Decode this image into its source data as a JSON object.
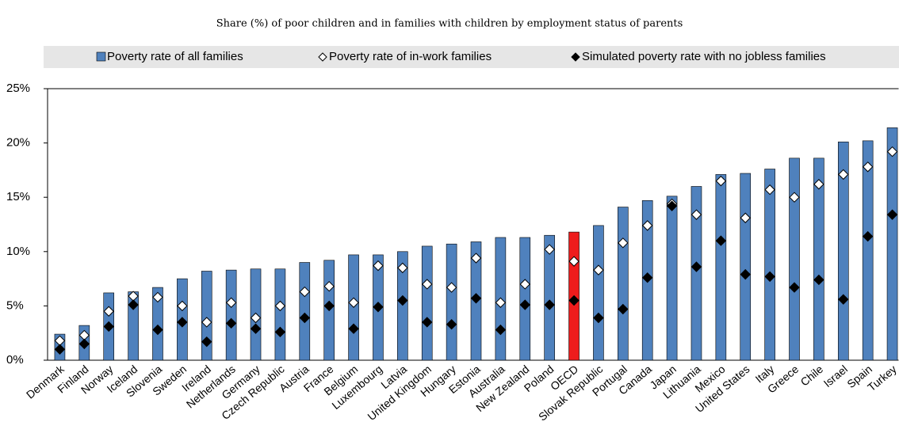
{
  "chart_data": {
    "type": "bar",
    "title": "Share (%) of poor children and in families with children by employment status of parents",
    "categories": [
      "Denmark",
      "Finland",
      "Norway",
      "Iceland",
      "Slovenia",
      "Sweden",
      "Ireland",
      "Netherlands",
      "Germany",
      "Czech Republic",
      "Austria",
      "France",
      "Belgium",
      "Luxembourg",
      "Latvia",
      "United Kingdom",
      "Hungary",
      "Estonia",
      "Australia",
      "New Zealand",
      "Poland",
      "OECD",
      "Slovak Republic",
      "Portugal",
      "Canada",
      "Japan",
      "Lithuania",
      "Mexico",
      "United States",
      "Italy",
      "Greece",
      "Chile",
      "Israel",
      "Spain",
      "Turkey"
    ],
    "series": [
      {
        "name": "Poverty rate of all families",
        "marker": "bar",
        "color": "#4f81bd",
        "colors": [
          "#4f81bd",
          "#4f81bd",
          "#4f81bd",
          "#4f81bd",
          "#4f81bd",
          "#4f81bd",
          "#4f81bd",
          "#4f81bd",
          "#4f81bd",
          "#4f81bd",
          "#4f81bd",
          "#4f81bd",
          "#4f81bd",
          "#4f81bd",
          "#4f81bd",
          "#4f81bd",
          "#4f81bd",
          "#4f81bd",
          "#4f81bd",
          "#4f81bd",
          "#4f81bd",
          "#ee1c1c",
          "#4f81bd",
          "#4f81bd",
          "#4f81bd",
          "#4f81bd",
          "#4f81bd",
          "#4f81bd",
          "#4f81bd",
          "#4f81bd",
          "#4f81bd",
          "#4f81bd",
          "#4f81bd",
          "#4f81bd",
          "#4f81bd"
        ],
        "values": [
          2.4,
          3.2,
          6.2,
          6.3,
          6.7,
          7.5,
          8.2,
          8.3,
          8.4,
          8.4,
          9.0,
          9.2,
          9.7,
          9.7,
          10.0,
          10.5,
          10.7,
          10.9,
          11.3,
          11.3,
          11.5,
          11.8,
          12.4,
          14.1,
          14.7,
          15.1,
          16.0,
          17.1,
          17.2,
          17.6,
          18.6,
          18.6,
          20.1,
          20.2,
          21.4
        ]
      },
      {
        "name": "Poverty rate of in-work families",
        "marker": "diamond",
        "color": "#ffffff",
        "values": [
          1.8,
          2.3,
          4.5,
          5.9,
          5.8,
          5.0,
          3.5,
          5.3,
          3.9,
          5.0,
          6.3,
          6.8,
          5.3,
          8.7,
          8.5,
          7.0,
          6.7,
          9.4,
          5.3,
          7.0,
          10.2,
          9.1,
          8.3,
          10.8,
          12.4,
          14.4,
          13.4,
          16.5,
          13.1,
          15.7,
          15.0,
          16.2,
          17.1,
          17.8,
          19.2
        ]
      },
      {
        "name": "Simulated poverty rate with no jobless families",
        "marker": "diamond",
        "color": "#000000",
        "values": [
          1.0,
          1.5,
          3.1,
          5.1,
          2.8,
          3.5,
          1.7,
          3.4,
          2.9,
          2.6,
          3.9,
          5.0,
          2.9,
          4.9,
          5.5,
          3.5,
          3.3,
          5.7,
          2.8,
          5.1,
          5.1,
          5.5,
          3.9,
          4.7,
          7.6,
          14.2,
          8.6,
          11.0,
          7.9,
          7.7,
          6.7,
          7.4,
          5.6,
          11.4,
          13.4
        ]
      }
    ],
    "ylim": [
      0,
      25
    ],
    "yticks": [
      {
        "value": 0,
        "label": "0%"
      },
      {
        "value": 5,
        "label": "5%"
      },
      {
        "value": 10,
        "label": "10%"
      },
      {
        "value": 15,
        "label": "15%"
      },
      {
        "value": 20,
        "label": "20%"
      },
      {
        "value": 25,
        "label": "25%"
      }
    ],
    "grid": false
  }
}
